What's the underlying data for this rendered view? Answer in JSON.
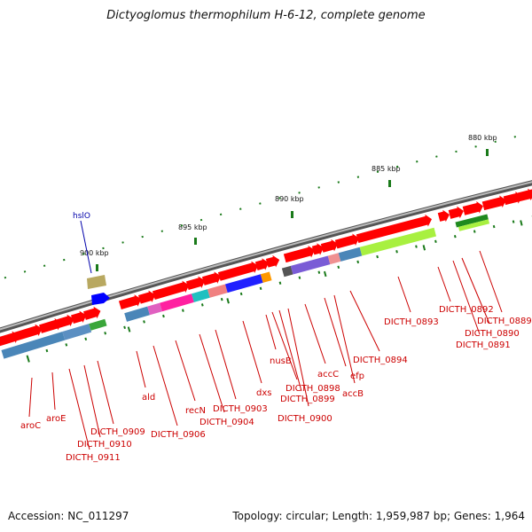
{
  "title": "Dictyoglomus thermophilum H-6-12, complete genome",
  "footer": {
    "accession": "Accession: NC_011297",
    "summary": "Topology: circular; Length: 1,959,987 bp; Genes: 1,964"
  },
  "colors": {
    "backbone": "#8a8a8a",
    "tick": "#1a7a1a",
    "gene_label": "#cc0000",
    "hslO_label": "#0000aa"
  },
  "kbp_labels": [
    "880 kbp",
    "885 kbp",
    "890 kbp",
    "895 kbp",
    "900 kbp"
  ],
  "gene_labels": [
    "aroC",
    "aroE",
    "DICTH_0909",
    "DICTH_0910",
    "DICTH_0911",
    "ald",
    "DICTH_0906",
    "recN",
    "DICTH_0903",
    "DICTH_0904",
    "dxs",
    "nusB",
    "DICTH_0898",
    "DICTH_0899",
    "DICTH_0900",
    "accC",
    "efp",
    "accB",
    "DICTH_0894",
    "DICTH_0893",
    "DICTH_0892",
    "DICTH_0890",
    "DICTH_0891",
    "DICTH_0889",
    "hslO"
  ]
}
